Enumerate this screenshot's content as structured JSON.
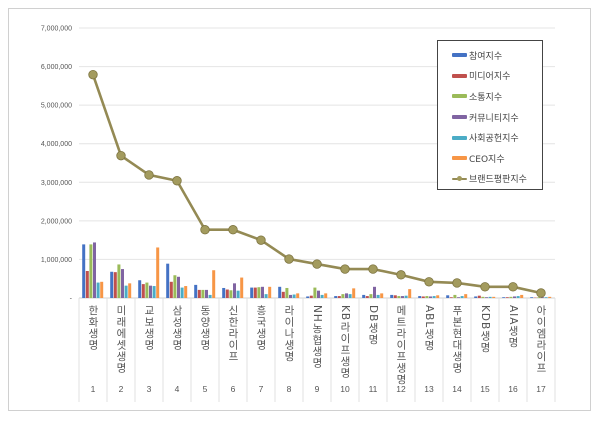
{
  "chart_data": {
    "type": "bar+line",
    "title": "",
    "xlabel": "",
    "ylabel": "",
    "ylim": [
      0,
      7000000
    ],
    "yticks": [
      "-",
      "1,000,000",
      "2,000,000",
      "3,000,000",
      "4,000,000",
      "5,000,000",
      "6,000,000",
      "7,000,000"
    ],
    "grid": true,
    "legend_position": "top-right",
    "categories": [
      "한화생명",
      "미래에셋생명",
      "교보생명",
      "삼성생명",
      "동양생명",
      "신한라이프",
      "흥국생명",
      "라이나생명",
      "NH농협생명",
      "KB라이프생명",
      "DB생명",
      "메트라이프생명",
      "ABL생명",
      "푸본현대생명",
      "KDB생명",
      "AIA생명",
      "아이엠라이프"
    ],
    "ranks": [
      "1",
      "2",
      "3",
      "4",
      "5",
      "6",
      "7",
      "8",
      "9",
      "10",
      "11",
      "12",
      "13",
      "14",
      "15",
      "16",
      "17"
    ],
    "series": [
      {
        "name": "참여지수",
        "type": "bar",
        "color": "#4472c4",
        "values": [
          1390000,
          680000,
          460000,
          890000,
          340000,
          260000,
          270000,
          290000,
          40000,
          50000,
          80000,
          80000,
          50000,
          70000,
          40000,
          20000,
          20000
        ]
      },
      {
        "name": "미디어지수",
        "type": "bar",
        "color": "#c0504d",
        "values": [
          700000,
          670000,
          360000,
          420000,
          210000,
          220000,
          270000,
          160000,
          60000,
          50000,
          50000,
          70000,
          40000,
          20000,
          60000,
          20000,
          10000
        ]
      },
      {
        "name": "소통지수",
        "type": "bar",
        "color": "#9bbb59",
        "values": [
          1390000,
          870000,
          400000,
          590000,
          210000,
          200000,
          280000,
          260000,
          270000,
          100000,
          100000,
          50000,
          50000,
          80000,
          30000,
          30000,
          20000
        ]
      },
      {
        "name": "커뮤니티지수",
        "type": "bar",
        "color": "#8064a2",
        "values": [
          1440000,
          750000,
          320000,
          550000,
          210000,
          380000,
          290000,
          80000,
          190000,
          120000,
          290000,
          50000,
          40000,
          20000,
          20000,
          40000,
          20000
        ]
      },
      {
        "name": "사회공헌지수",
        "type": "bar",
        "color": "#4bacc6",
        "values": [
          400000,
          320000,
          310000,
          270000,
          80000,
          190000,
          100000,
          90000,
          80000,
          100000,
          80000,
          60000,
          50000,
          50000,
          30000,
          50000,
          20000
        ]
      },
      {
        "name": "CEO지수",
        "type": "bar",
        "color": "#f79646",
        "values": [
          420000,
          380000,
          1310000,
          310000,
          720000,
          530000,
          290000,
          120000,
          120000,
          250000,
          120000,
          230000,
          70000,
          100000,
          30000,
          80000,
          30000
        ]
      },
      {
        "name": "브랜드평판지수",
        "type": "line",
        "color": "#948a54",
        "values": [
          5790000,
          3690000,
          3190000,
          3040000,
          1770000,
          1770000,
          1500000,
          1010000,
          880000,
          750000,
          750000,
          600000,
          420000,
          390000,
          290000,
          290000,
          130000
        ]
      }
    ]
  }
}
